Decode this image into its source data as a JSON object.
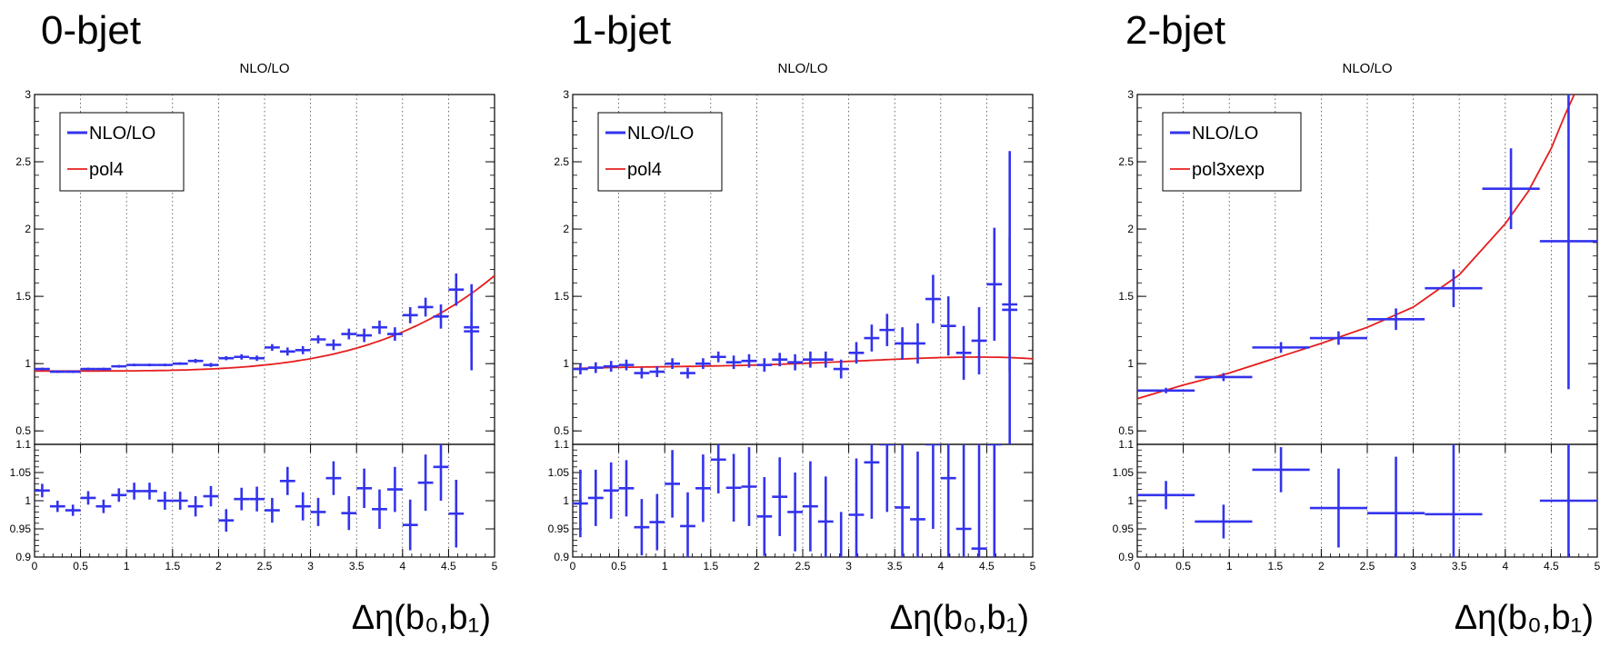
{
  "chart_data": [
    {
      "type": "scatter",
      "title": "0-bjet",
      "subtitle": "NLO/LO",
      "xlabel": "Δη(b₀,b₁)",
      "xlim": [
        0,
        5
      ],
      "ylim": [
        0.4,
        3
      ],
      "ratio_ylim": [
        0.9,
        1.1
      ],
      "x_ticks": [
        "0",
        "0.5",
        "1",
        "1.5",
        "2",
        "2.5",
        "3",
        "3.5",
        "4",
        "4.5",
        "5"
      ],
      "y_ticks": [
        "0.5",
        "1",
        "1.5",
        "2",
        "2.5",
        "3"
      ],
      "ratio_ticks": [
        "0.9",
        "0.95",
        "1",
        "1.05",
        "1.1"
      ],
      "grid": "vertical dotted",
      "legend": {
        "placement": "top-left",
        "entries": [
          "NLO/LO",
          "pol4"
        ]
      },
      "colors": {
        "data": "#3333ee",
        "fit": "#e61e1e"
      },
      "fit": {
        "name": "pol4",
        "coef": [
          0.945,
          0.0,
          0.0,
          0.0,
          0.001134
        ]
      },
      "series": [
        {
          "name": "NLO/LO",
          "x": [
            0.083,
            0.25,
            0.417,
            0.583,
            0.75,
            0.917,
            1.083,
            1.25,
            1.417,
            1.583,
            1.75,
            1.917,
            2.083,
            2.25,
            2.417,
            2.583,
            2.75,
            2.917,
            3.083,
            3.25,
            3.417,
            3.583,
            3.75,
            3.917,
            4.083,
            4.25,
            4.417,
            4.583,
            4.75
          ],
          "y": [
            0.96,
            0.94,
            0.94,
            0.96,
            0.96,
            0.98,
            0.99,
            0.99,
            0.99,
            1.0,
            1.02,
            0.99,
            1.04,
            1.05,
            1.04,
            1.12,
            1.09,
            1.1,
            1.18,
            1.14,
            1.22,
            1.21,
            1.27,
            1.22,
            1.36,
            1.42,
            1.35,
            1.55,
            1.24
          ],
          "xerr": 0.083,
          "yerr": [
            0.01,
            0.01,
            0.01,
            0.01,
            0.01,
            0.01,
            0.01,
            0.01,
            0.01,
            0.01,
            0.015,
            0.015,
            0.015,
            0.02,
            0.02,
            0.025,
            0.03,
            0.03,
            0.03,
            0.04,
            0.04,
            0.05,
            0.05,
            0.05,
            0.06,
            0.07,
            0.09,
            0.12,
            0.15
          ]
        }
      ],
      "extra_points": [
        {
          "x": 4.75,
          "y": 1.27,
          "yerr": 0.32
        }
      ],
      "ratio": {
        "x": [
          0.083,
          0.25,
          0.417,
          0.583,
          0.75,
          0.917,
          1.083,
          1.25,
          1.417,
          1.583,
          1.75,
          1.917,
          2.083,
          2.25,
          2.417,
          2.583,
          2.75,
          2.917,
          3.083,
          3.25,
          3.417,
          3.583,
          3.75,
          3.917,
          4.083,
          4.25,
          4.417,
          4.583
        ],
        "y": [
          1.018,
          0.99,
          0.983,
          1.005,
          0.99,
          1.01,
          1.017,
          1.017,
          1.0,
          1.0,
          0.99,
          1.008,
          0.965,
          1.003,
          1.003,
          0.983,
          1.035,
          0.99,
          0.98,
          1.04,
          0.978,
          1.022,
          0.985,
          1.02,
          0.957,
          1.032,
          1.06,
          0.977
        ],
        "yerr": [
          0.012,
          0.01,
          0.01,
          0.012,
          0.012,
          0.012,
          0.015,
          0.015,
          0.016,
          0.016,
          0.018,
          0.018,
          0.02,
          0.02,
          0.022,
          0.022,
          0.025,
          0.025,
          0.025,
          0.03,
          0.03,
          0.035,
          0.035,
          0.04,
          0.045,
          0.05,
          0.06,
          0.06
        ]
      }
    },
    {
      "type": "scatter",
      "title": "1-bjet",
      "subtitle": "NLO/LO",
      "xlabel": "Δη(b₀,b₁)",
      "xlim": [
        0,
        5
      ],
      "ylim": [
        0.4,
        3
      ],
      "ratio_ylim": [
        0.9,
        1.1
      ],
      "x_ticks": [
        "0",
        "0.5",
        "1",
        "1.5",
        "2",
        "2.5",
        "3",
        "3.5",
        "4",
        "4.5",
        "5"
      ],
      "y_ticks": [
        "0.5",
        "1",
        "1.5",
        "2",
        "2.5",
        "3"
      ],
      "ratio_ticks": [
        "0.9",
        "0.95",
        "1",
        "1.05",
        "1.1"
      ],
      "grid": "vertical dotted",
      "legend": {
        "placement": "top-left",
        "entries": [
          "NLO/LO",
          "pol4"
        ]
      },
      "colors": {
        "data": "#3333ee",
        "fit": "#e61e1e"
      },
      "fit": {
        "name": "pol4",
        "coef": [
          0.963,
          0.0257,
          -0.0198,
          0.00904,
          -0.001105
        ]
      },
      "series": [
        {
          "name": "NLO/LO",
          "x": [
            0.083,
            0.25,
            0.417,
            0.583,
            0.75,
            0.917,
            1.083,
            1.25,
            1.417,
            1.583,
            1.75,
            1.917,
            2.083,
            2.25,
            2.417,
            2.583,
            2.75,
            2.917,
            3.083,
            3.25,
            3.417,
            3.583,
            3.75,
            3.917,
            4.083,
            4.25,
            4.417,
            4.583,
            4.75
          ],
          "y": [
            0.96,
            0.97,
            0.98,
            0.99,
            0.93,
            0.94,
            1.0,
            0.93,
            1.0,
            1.05,
            1.01,
            1.02,
            0.99,
            1.03,
            1.01,
            1.03,
            1.03,
            0.96,
            1.08,
            1.19,
            1.25,
            1.15,
            1.15,
            1.48,
            1.28,
            1.08,
            1.17,
            1.59,
            1.44
          ],
          "xerr": 0.083,
          "yerr": [
            0.04,
            0.04,
            0.04,
            0.04,
            0.04,
            0.04,
            0.04,
            0.04,
            0.04,
            0.04,
            0.05,
            0.05,
            0.05,
            0.05,
            0.06,
            0.06,
            0.06,
            0.07,
            0.08,
            0.1,
            0.12,
            0.12,
            0.15,
            0.18,
            0.22,
            0.2,
            0.25,
            0.42,
            0.5
          ]
        }
      ],
      "extra_points": [
        {
          "x": 4.75,
          "y": 1.4,
          "yerr": 1.18
        }
      ],
      "ratio": {
        "x": [
          0.083,
          0.25,
          0.417,
          0.583,
          0.75,
          0.917,
          1.083,
          1.25,
          1.417,
          1.583,
          1.75,
          1.917,
          2.083,
          2.25,
          2.417,
          2.583,
          2.75,
          2.917,
          3.083,
          3.25,
          3.417,
          3.583,
          3.75,
          3.917,
          4.083,
          4.25,
          4.417,
          4.583
        ],
        "y": [
          0.995,
          1.005,
          1.018,
          1.022,
          0.953,
          0.962,
          1.03,
          0.955,
          1.022,
          1.073,
          1.023,
          1.025,
          0.972,
          1.007,
          0.98,
          0.99,
          0.963,
          0.89,
          0.975,
          1.068,
          1.1,
          0.988,
          0.967,
          1.1,
          1.04,
          0.95,
          0.915,
          1.1
        ],
        "yerr": [
          0.06,
          0.05,
          0.05,
          0.05,
          0.05,
          0.05,
          0.06,
          0.06,
          0.06,
          0.06,
          0.06,
          0.07,
          0.07,
          0.07,
          0.07,
          0.08,
          0.08,
          0.09,
          0.1,
          0.1,
          0.12,
          0.12,
          0.12,
          0.15,
          0.15,
          0.18,
          0.2,
          0.2
        ]
      }
    },
    {
      "type": "scatter",
      "title": "2-bjet",
      "subtitle": "NLO/LO",
      "xlabel": "Δη(b₀,b₁)",
      "xlim": [
        0,
        5
      ],
      "ylim": [
        0.4,
        3
      ],
      "ratio_ylim": [
        0.9,
        1.1
      ],
      "x_ticks": [
        "0",
        "0.5",
        "1",
        "1.5",
        "2",
        "2.5",
        "3",
        "3.5",
        "4",
        "4.5",
        "5"
      ],
      "y_ticks": [
        "0.5",
        "1",
        "1.5",
        "2",
        "2.5",
        "3"
      ],
      "ratio_ticks": [
        "0.9",
        "0.95",
        "1",
        "1.05",
        "1.1"
      ],
      "grid": "vertical dotted",
      "legend": {
        "placement": "top-left",
        "entries": [
          "NLO/LO",
          "pol3xexp"
        ]
      },
      "colors": {
        "data": "#3333ee",
        "fit": "#e61e1e"
      },
      "fit": {
        "name": "pol3xexp",
        "curve_x": [
          0,
          0.5,
          1,
          1.5,
          2,
          2.5,
          3,
          3.5,
          4,
          4.25,
          4.5,
          4.65,
          4.75
        ],
        "curve_y": [
          0.74,
          0.84,
          0.93,
          1.04,
          1.15,
          1.27,
          1.42,
          1.66,
          2.04,
          2.28,
          2.6,
          2.85,
          3.0
        ]
      },
      "series": [
        {
          "name": "NLO/LO",
          "x": [
            0.312,
            0.938,
            1.562,
            2.188,
            2.812,
            3.438,
            4.062,
            4.688
          ],
          "y": [
            0.8,
            0.9,
            1.12,
            1.19,
            1.33,
            1.56,
            2.3,
            1.91
          ],
          "xerr": 0.312,
          "yerr": [
            0.02,
            0.03,
            0.04,
            0.05,
            0.08,
            0.14,
            0.3,
            1.1
          ]
        }
      ],
      "ratio": {
        "x": [
          0.312,
          0.938,
          1.562,
          2.188,
          2.812,
          3.438,
          4.688
        ],
        "y": [
          1.01,
          0.963,
          1.055,
          0.987,
          0.978,
          0.976,
          1.0
        ],
        "yerr": [
          0.025,
          0.03,
          0.04,
          0.07,
          0.1,
          0.15,
          0.2
        ]
      }
    }
  ]
}
